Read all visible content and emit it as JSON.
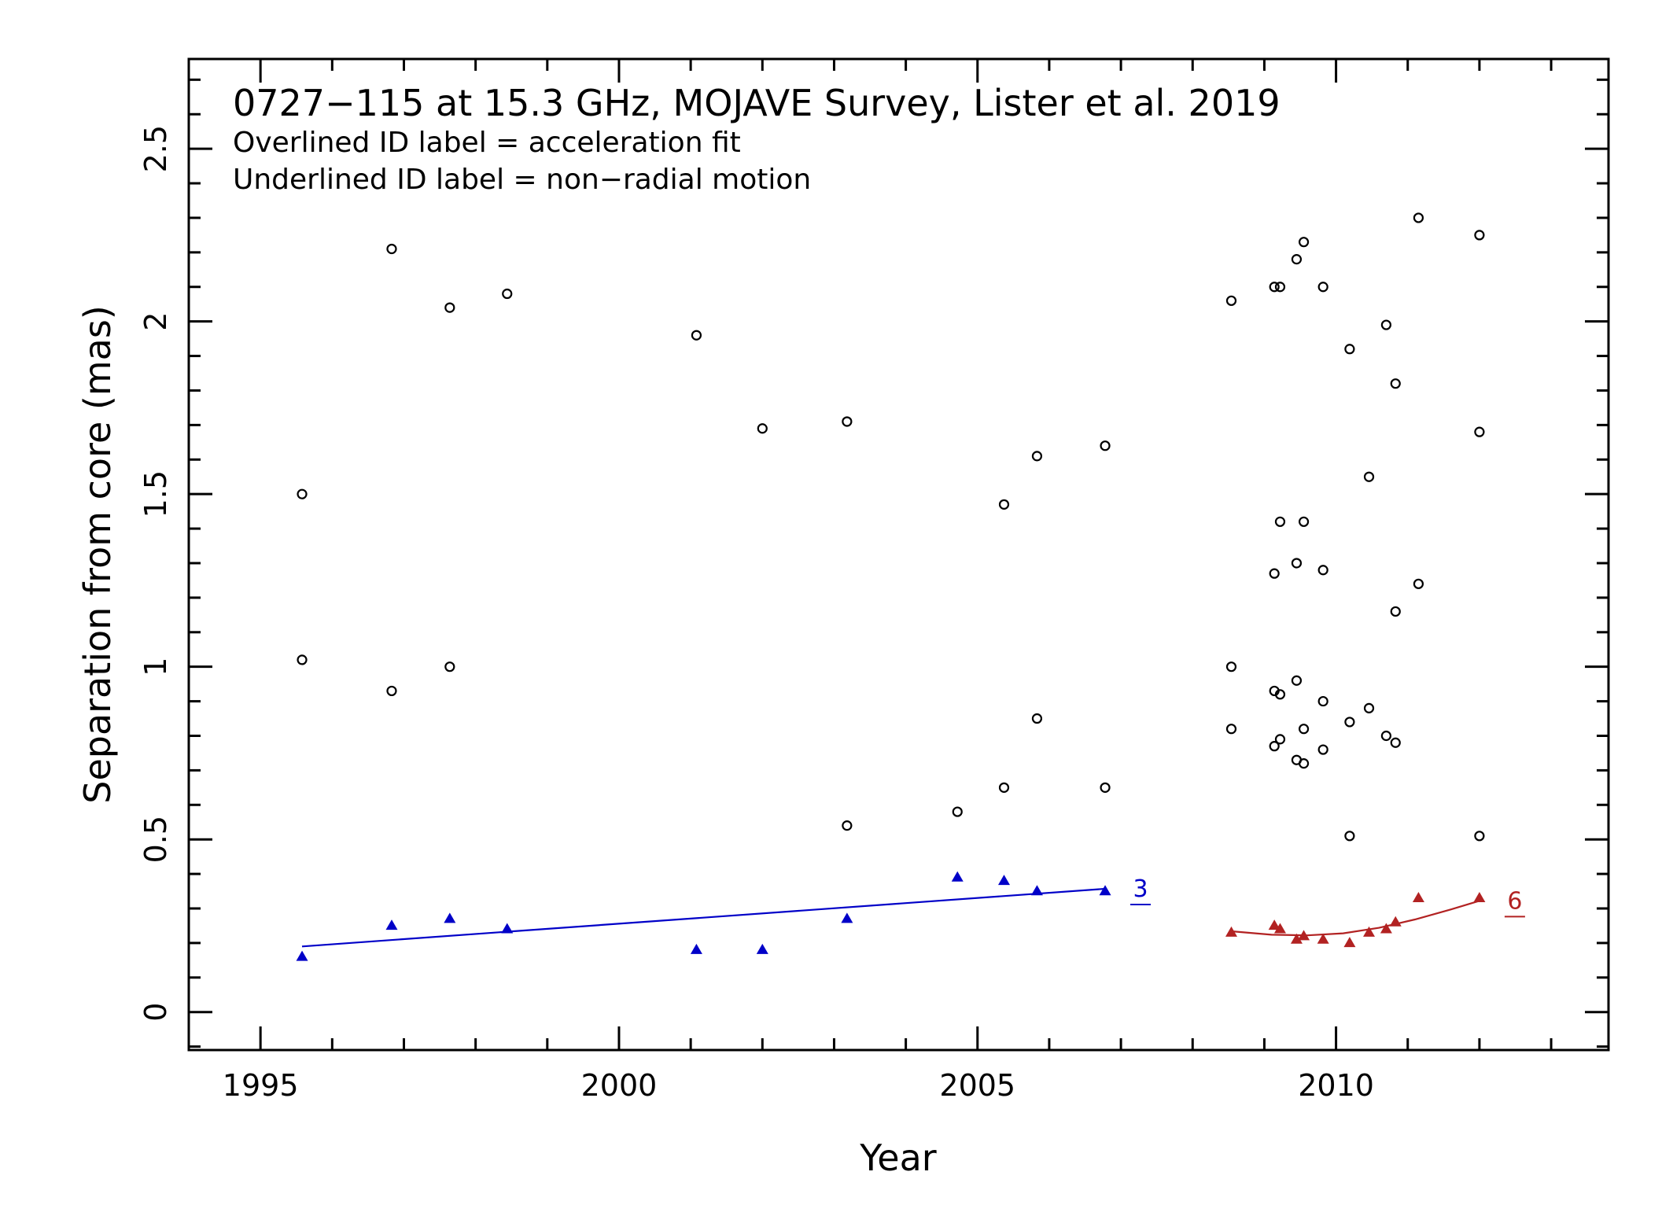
{
  "chart_data": {
    "type": "scatter",
    "title": "0727−115 at 15.3 GHz, MOJAVE Survey, Lister et al. 2019",
    "subtitle_lines": [
      "Overlined ID label = acceleration fit",
      "Underlined ID label = non−radial motion"
    ],
    "xlabel": "Year",
    "ylabel": "Separation from core (mas)",
    "xlim": [
      1994.0,
      2013.8
    ],
    "ylim": [
      -0.11,
      2.76
    ],
    "xticks": [
      1995,
      2000,
      2005,
      2010
    ],
    "xtick_labels": [
      "1995",
      "2000",
      "2005",
      "2010"
    ],
    "yticks": [
      0,
      0.5,
      1,
      1.5,
      2,
      2.5
    ],
    "ytick_labels": [
      "0",
      "0.5",
      "1",
      "1.5",
      "2",
      "2.5"
    ],
    "x_minor_step": 1,
    "y_minor_step": 0.1,
    "grid": false,
    "series": [
      {
        "marker": "open-circle",
        "color": "#000000",
        "points": [
          [
            1995.58,
            1.02
          ],
          [
            1995.58,
            1.5
          ],
          [
            1996.83,
            0.93
          ],
          [
            1996.83,
            2.21
          ],
          [
            1997.64,
            1.0
          ],
          [
            1997.64,
            2.04
          ],
          [
            1998.44,
            2.08
          ],
          [
            2001.08,
            1.96
          ],
          [
            2002.0,
            1.69
          ],
          [
            2003.18,
            0.54
          ],
          [
            2003.18,
            1.71
          ],
          [
            2004.72,
            0.58
          ],
          [
            2005.37,
            0.65
          ],
          [
            2005.37,
            1.47
          ],
          [
            2005.83,
            0.85
          ],
          [
            2005.83,
            1.61
          ],
          [
            2006.78,
            0.65
          ],
          [
            2006.78,
            1.64
          ],
          [
            2008.54,
            0.82
          ],
          [
            2008.54,
            1.0
          ],
          [
            2008.54,
            2.06
          ],
          [
            2009.14,
            0.77
          ],
          [
            2009.14,
            0.93
          ],
          [
            2009.14,
            1.27
          ],
          [
            2009.14,
            2.1
          ],
          [
            2009.22,
            0.79
          ],
          [
            2009.22,
            0.92
          ],
          [
            2009.22,
            1.42
          ],
          [
            2009.22,
            2.1
          ],
          [
            2009.45,
            0.73
          ],
          [
            2009.45,
            0.96
          ],
          [
            2009.45,
            1.3
          ],
          [
            2009.45,
            2.18
          ],
          [
            2009.55,
            0.72
          ],
          [
            2009.55,
            0.82
          ],
          [
            2009.55,
            1.42
          ],
          [
            2009.55,
            2.23
          ],
          [
            2009.82,
            0.76
          ],
          [
            2009.82,
            0.9
          ],
          [
            2009.82,
            1.28
          ],
          [
            2009.82,
            2.1
          ],
          [
            2010.19,
            0.51
          ],
          [
            2010.19,
            0.84
          ],
          [
            2010.19,
            1.92
          ],
          [
            2010.46,
            0.88
          ],
          [
            2010.46,
            1.55
          ],
          [
            2010.7,
            0.8
          ],
          [
            2010.7,
            1.99
          ],
          [
            2010.83,
            0.78
          ],
          [
            2010.83,
            1.16
          ],
          [
            2010.83,
            1.82
          ],
          [
            2011.15,
            1.24
          ],
          [
            2011.15,
            2.3
          ],
          [
            2012.0,
            0.51
          ],
          [
            2012.0,
            1.68
          ],
          [
            2012.0,
            2.25
          ]
        ]
      },
      {
        "name": "3",
        "marker": "filled-triangle",
        "color": "#0000c8",
        "label_underlined": true,
        "points": [
          [
            1995.58,
            0.16
          ],
          [
            1996.83,
            0.25
          ],
          [
            1997.64,
            0.27
          ],
          [
            1998.44,
            0.24
          ],
          [
            2001.08,
            0.18
          ],
          [
            2002.0,
            0.18
          ],
          [
            2003.18,
            0.27
          ],
          [
            2004.72,
            0.39
          ],
          [
            2005.37,
            0.38
          ],
          [
            2005.83,
            0.35
          ],
          [
            2006.78,
            0.35
          ]
        ],
        "fit_line": [
          [
            1995.58,
            0.19
          ],
          [
            2006.78,
            0.357
          ]
        ],
        "fit_kind": "linear"
      },
      {
        "name": "6",
        "marker": "filled-triangle",
        "color": "#b22222",
        "label_underlined": true,
        "points": [
          [
            2008.54,
            0.23
          ],
          [
            2009.14,
            0.25
          ],
          [
            2009.22,
            0.24
          ],
          [
            2009.45,
            0.21
          ],
          [
            2009.55,
            0.22
          ],
          [
            2009.82,
            0.21
          ],
          [
            2010.19,
            0.2
          ],
          [
            2010.46,
            0.23
          ],
          [
            2010.7,
            0.24
          ],
          [
            2010.83,
            0.26
          ],
          [
            2011.15,
            0.33
          ],
          [
            2012.0,
            0.33
          ]
        ],
        "fit_line": [
          [
            2008.54,
            0.234
          ],
          [
            2009.1,
            0.224
          ],
          [
            2009.6,
            0.222
          ],
          [
            2010.1,
            0.228
          ],
          [
            2010.6,
            0.244
          ],
          [
            2011.1,
            0.268
          ],
          [
            2011.6,
            0.297
          ],
          [
            2012.0,
            0.322
          ]
        ],
        "fit_kind": "quadratic"
      }
    ]
  }
}
